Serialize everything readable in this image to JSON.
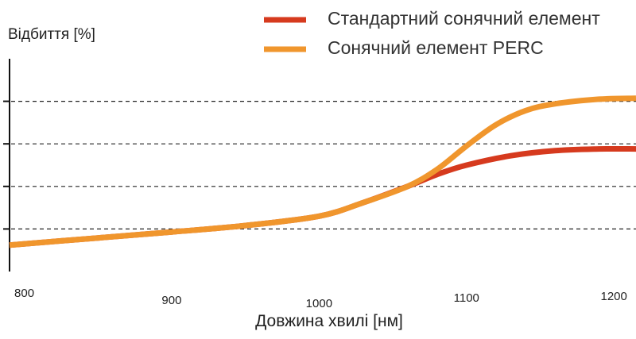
{
  "chart_data": {
    "type": "line",
    "title": "",
    "ylabel": "Відбиття [%]",
    "xlabel": "Довжина хвилі [нм]",
    "x_ticks": [
      800,
      900,
      1000,
      1100,
      1200
    ],
    "xlim": [
      790,
      1215
    ],
    "ylim": [
      0,
      5
    ],
    "y_gridlines": [
      1,
      2,
      3,
      4
    ],
    "y_tick_labels_visible": false,
    "legend_position": "top-right",
    "series": [
      {
        "name": "Стандартний сонячний елемент",
        "color": "#d63a1e",
        "x": [
          790,
          850,
          900,
          950,
          1000,
          1030,
          1060,
          1080,
          1100,
          1130,
          1160,
          1190,
          1215
        ],
        "y": [
          0.62,
          0.79,
          0.93,
          1.08,
          1.3,
          1.62,
          2.0,
          2.28,
          2.5,
          2.72,
          2.84,
          2.88,
          2.88
        ]
      },
      {
        "name": "Сонячний елемент PERC",
        "color": "#f0962d",
        "x": [
          790,
          850,
          900,
          950,
          1000,
          1030,
          1060,
          1080,
          1100,
          1120,
          1140,
          1160,
          1190,
          1215
        ],
        "y": [
          0.62,
          0.79,
          0.93,
          1.08,
          1.3,
          1.62,
          2.0,
          2.4,
          2.95,
          3.45,
          3.78,
          3.94,
          4.05,
          4.07
        ]
      }
    ]
  }
}
